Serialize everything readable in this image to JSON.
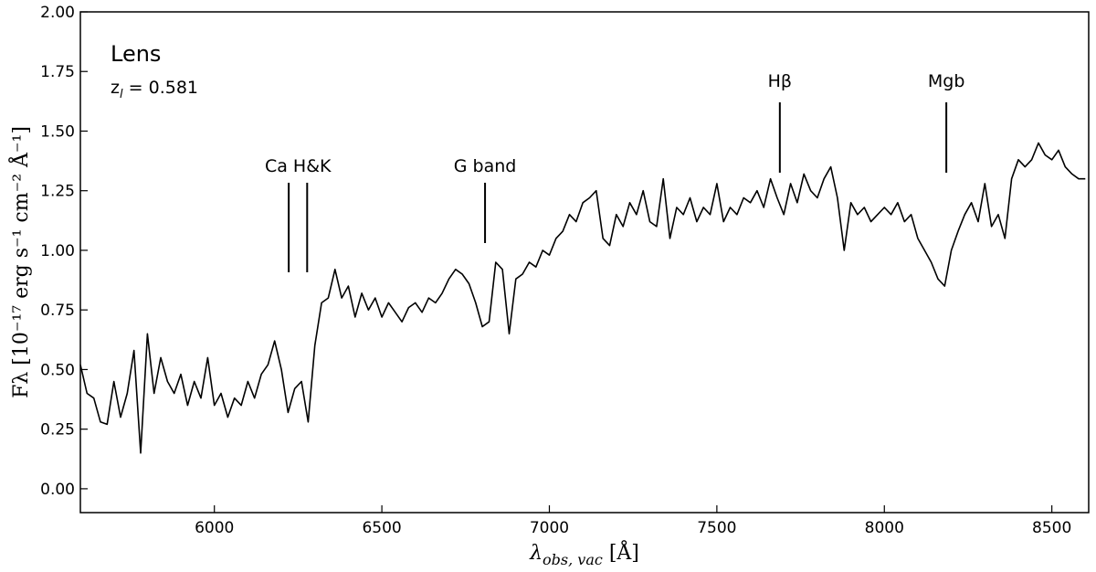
{
  "chart_data": {
    "type": "line",
    "title_lines": {
      "name": "Lens",
      "z_base": "z",
      "z_sub": "l",
      "z_rest": " = 0.581"
    },
    "xlabel": {
      "base": "λ",
      "sub": "obs, vac",
      "rest": " [Å]"
    },
    "ylabel": "Fλ [10⁻¹⁷ erg s⁻¹ cm⁻² Å⁻¹]",
    "xlim": [
      5600,
      8610
    ],
    "ylim": [
      -0.1,
      2.0
    ],
    "xticks": [
      6000,
      6500,
      7000,
      7500,
      8000,
      8500
    ],
    "yticks": [
      {
        "value": 0,
        "label": "0.00"
      },
      {
        "value": 0.25,
        "label": "0.25"
      },
      {
        "value": 0.5,
        "label": "0.50"
      },
      {
        "value": 0.75,
        "label": "0.75"
      },
      {
        "value": 1.0,
        "label": "1.00"
      },
      {
        "value": 1.25,
        "label": "1.25"
      },
      {
        "value": 1.5,
        "label": "1.50"
      },
      {
        "value": 1.75,
        "label": "1.75"
      },
      {
        "value": 2.0,
        "label": "2.00"
      }
    ],
    "grid": false,
    "annotations": [
      {
        "label": "Ca H&K",
        "x": [
          6222,
          6277
        ],
        "level": "low"
      },
      {
        "label": "G band",
        "x": [
          6808
        ],
        "level": "mid"
      },
      {
        "label": "Hβ",
        "x": [
          7688
        ],
        "level": "high"
      },
      {
        "label": "Mgb",
        "x": [
          8185
        ],
        "level": "high"
      }
    ],
    "series": [
      {
        "color": "#000000",
        "x": [
          5600,
          5620,
          5640,
          5660,
          5680,
          5700,
          5720,
          5740,
          5760,
          5780,
          5800,
          5820,
          5840,
          5860,
          5880,
          5900,
          5920,
          5940,
          5960,
          5980,
          6000,
          6020,
          6040,
          6060,
          6080,
          6100,
          6120,
          6140,
          6160,
          6180,
          6200,
          6220,
          6240,
          6260,
          6280,
          6300,
          6320,
          6340,
          6360,
          6380,
          6400,
          6420,
          6440,
          6460,
          6480,
          6500,
          6520,
          6540,
          6560,
          6580,
          6600,
          6620,
          6640,
          6660,
          6680,
          6700,
          6720,
          6740,
          6760,
          6780,
          6800,
          6820,
          6840,
          6860,
          6880,
          6900,
          6920,
          6940,
          6960,
          6980,
          7000,
          7020,
          7040,
          7060,
          7080,
          7100,
          7120,
          7140,
          7160,
          7180,
          7200,
          7220,
          7240,
          7260,
          7280,
          7300,
          7320,
          7340,
          7360,
          7380,
          7400,
          7420,
          7440,
          7460,
          7480,
          7500,
          7520,
          7540,
          7560,
          7580,
          7600,
          7620,
          7640,
          7660,
          7680,
          7700,
          7720,
          7740,
          7760,
          7780,
          7800,
          7820,
          7840,
          7860,
          7880,
          7900,
          7920,
          7940,
          7960,
          7980,
          8000,
          8020,
          8040,
          8060,
          8080,
          8100,
          8120,
          8140,
          8160,
          8180,
          8200,
          8220,
          8240,
          8260,
          8280,
          8300,
          8320,
          8340,
          8360,
          8380,
          8400,
          8420,
          8440,
          8460,
          8480,
          8500,
          8520,
          8540,
          8560,
          8580,
          8600
        ],
        "values": [
          0.52,
          0.4,
          0.38,
          0.28,
          0.27,
          0.45,
          0.3,
          0.4,
          0.58,
          0.15,
          0.65,
          0.4,
          0.55,
          0.45,
          0.4,
          0.48,
          0.35,
          0.45,
          0.38,
          0.55,
          0.35,
          0.4,
          0.3,
          0.38,
          0.35,
          0.45,
          0.38,
          0.48,
          0.52,
          0.62,
          0.5,
          0.32,
          0.42,
          0.45,
          0.28,
          0.6,
          0.78,
          0.8,
          0.92,
          0.8,
          0.85,
          0.72,
          0.82,
          0.75,
          0.8,
          0.72,
          0.78,
          0.74,
          0.7,
          0.76,
          0.78,
          0.74,
          0.8,
          0.78,
          0.82,
          0.88,
          0.92,
          0.9,
          0.86,
          0.78,
          0.68,
          0.7,
          0.95,
          0.92,
          0.65,
          0.88,
          0.9,
          0.95,
          0.93,
          1.0,
          0.98,
          1.05,
          1.08,
          1.15,
          1.12,
          1.2,
          1.22,
          1.25,
          1.05,
          1.02,
          1.15,
          1.1,
          1.2,
          1.15,
          1.25,
          1.12,
          1.1,
          1.3,
          1.05,
          1.18,
          1.15,
          1.22,
          1.12,
          1.18,
          1.15,
          1.28,
          1.12,
          1.18,
          1.15,
          1.22,
          1.2,
          1.25,
          1.18,
          1.3,
          1.22,
          1.15,
          1.28,
          1.2,
          1.32,
          1.25,
          1.22,
          1.3,
          1.35,
          1.22,
          1.0,
          1.2,
          1.15,
          1.18,
          1.12,
          1.15,
          1.18,
          1.15,
          1.2,
          1.12,
          1.15,
          1.05,
          1.0,
          0.95,
          0.88,
          0.85,
          1.0,
          1.08,
          1.15,
          1.2,
          1.12,
          1.28,
          1.1,
          1.15,
          1.05,
          1.3,
          1.38,
          1.35,
          1.38,
          1.45,
          1.4,
          1.38,
          1.42,
          1.35,
          1.32,
          1.3,
          1.3
        ]
      }
    ]
  }
}
